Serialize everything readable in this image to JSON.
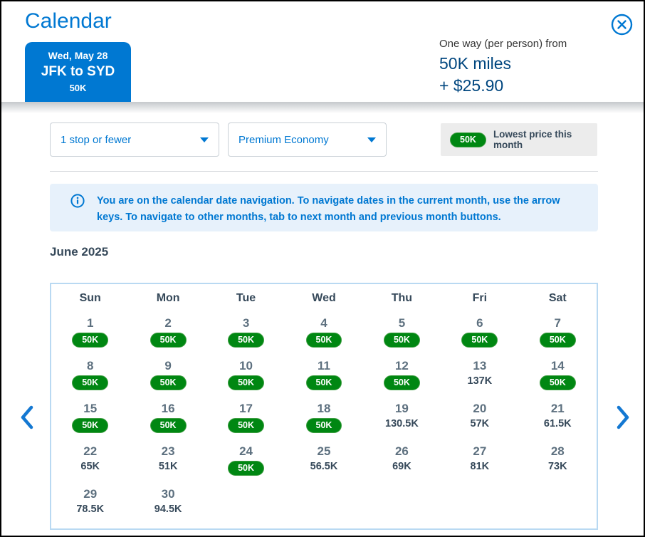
{
  "header": {
    "title": "Calendar",
    "close_label": "close",
    "tab": {
      "date": "Wed, May 28",
      "route": "JFK to SYD",
      "price": "50K"
    },
    "summary": {
      "label": "One way (per person) from",
      "miles": "50K miles",
      "fees": "+ $25.90"
    }
  },
  "filters": {
    "stops": {
      "value": "1 stop or fewer"
    },
    "cabin": {
      "value": "Premium Economy"
    }
  },
  "legend": {
    "badge": "50K",
    "label": "Lowest price this month"
  },
  "info_banner": {
    "text": "You are on the calendar date navigation. To navigate dates in the current month, use the arrow keys. To navigate to other months, tab to next month and previous month buttons."
  },
  "month_title": "June 2025",
  "calendar": {
    "day_headers": [
      "Sun",
      "Mon",
      "Tue",
      "Wed",
      "Thu",
      "Fri",
      "Sat"
    ],
    "weeks": [
      [
        {
          "day": "1",
          "price": "50K",
          "lowest": true
        },
        {
          "day": "2",
          "price": "50K",
          "lowest": true
        },
        {
          "day": "3",
          "price": "50K",
          "lowest": true
        },
        {
          "day": "4",
          "price": "50K",
          "lowest": true
        },
        {
          "day": "5",
          "price": "50K",
          "lowest": true
        },
        {
          "day": "6",
          "price": "50K",
          "lowest": true
        },
        {
          "day": "7",
          "price": "50K",
          "lowest": true
        }
      ],
      [
        {
          "day": "8",
          "price": "50K",
          "lowest": true
        },
        {
          "day": "9",
          "price": "50K",
          "lowest": true
        },
        {
          "day": "10",
          "price": "50K",
          "lowest": true
        },
        {
          "day": "11",
          "price": "50K",
          "lowest": true
        },
        {
          "day": "12",
          "price": "50K",
          "lowest": true
        },
        {
          "day": "13",
          "price": "137K",
          "lowest": false
        },
        {
          "day": "14",
          "price": "50K",
          "lowest": true
        }
      ],
      [
        {
          "day": "15",
          "price": "50K",
          "lowest": true
        },
        {
          "day": "16",
          "price": "50K",
          "lowest": true
        },
        {
          "day": "17",
          "price": "50K",
          "lowest": true
        },
        {
          "day": "18",
          "price": "50K",
          "lowest": true
        },
        {
          "day": "19",
          "price": "130.5K",
          "lowest": false
        },
        {
          "day": "20",
          "price": "57K",
          "lowest": false
        },
        {
          "day": "21",
          "price": "61.5K",
          "lowest": false
        }
      ],
      [
        {
          "day": "22",
          "price": "65K",
          "lowest": false
        },
        {
          "day": "23",
          "price": "51K",
          "lowest": false
        },
        {
          "day": "24",
          "price": "50K",
          "lowest": true
        },
        {
          "day": "25",
          "price": "56.5K",
          "lowest": false
        },
        {
          "day": "26",
          "price": "69K",
          "lowest": false
        },
        {
          "day": "27",
          "price": "81K",
          "lowest": false
        },
        {
          "day": "28",
          "price": "73K",
          "lowest": false
        }
      ],
      [
        {
          "day": "29",
          "price": "78.5K",
          "lowest": false
        },
        {
          "day": "30",
          "price": "94.5K",
          "lowest": false
        },
        null,
        null,
        null,
        null,
        null
      ]
    ]
  },
  "colors": {
    "brand_blue": "#0078D2",
    "dark_blue": "#00467F",
    "slate": "#36495A",
    "lowest_green": "#008712",
    "info_bg": "#E7F1FB",
    "legend_bg": "#ECECEC",
    "calendar_border": "#B9D9F2"
  }
}
